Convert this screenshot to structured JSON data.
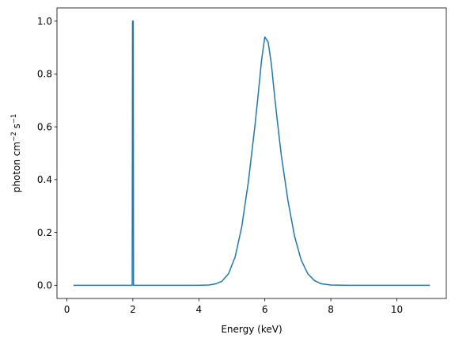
{
  "chart_data": {
    "type": "line",
    "title": "",
    "xlabel": "Energy (keV)",
    "ylabel_parts": {
      "a": "photon cm",
      "a_sup": "−2",
      "b": " s",
      "b_sup": "−1"
    },
    "xlim": [
      -0.3,
      11.5
    ],
    "ylim": [
      -0.05,
      1.05
    ],
    "xticks": [
      0,
      2,
      4,
      6,
      8,
      10
    ],
    "xtick_labels": [
      "0",
      "2",
      "4",
      "6",
      "8",
      "10"
    ],
    "yticks": [
      0.0,
      0.2,
      0.4,
      0.6,
      0.8,
      1.0
    ],
    "ytick_labels": [
      "0.0",
      "0.2",
      "0.4",
      "0.6",
      "0.8",
      "1.0"
    ],
    "grid": false,
    "legend": "none",
    "series": [
      {
        "color": "#1f77b4",
        "points": [
          [
            0.2,
            0.0
          ],
          [
            1.98,
            0.0
          ],
          [
            1.99,
            1.0
          ],
          [
            2.01,
            1.0
          ],
          [
            2.02,
            0.0
          ],
          [
            4.0,
            0.0
          ],
          [
            4.3,
            0.001
          ],
          [
            4.5,
            0.005
          ],
          [
            4.7,
            0.015
          ],
          [
            4.9,
            0.044
          ],
          [
            5.1,
            0.107
          ],
          [
            5.3,
            0.221
          ],
          [
            5.5,
            0.391
          ],
          [
            5.6,
            0.497
          ],
          [
            5.7,
            0.604
          ],
          [
            5.8,
            0.724
          ],
          [
            5.9,
            0.851
          ],
          [
            6.0,
            0.94
          ],
          [
            6.1,
            0.921
          ],
          [
            6.2,
            0.835
          ],
          [
            6.3,
            0.711
          ],
          [
            6.4,
            0.599
          ],
          [
            6.5,
            0.491
          ],
          [
            6.7,
            0.321
          ],
          [
            6.9,
            0.186
          ],
          [
            7.1,
            0.096
          ],
          [
            7.3,
            0.044
          ],
          [
            7.5,
            0.018
          ],
          [
            7.7,
            0.006
          ],
          [
            8.0,
            0.001
          ],
          [
            8.5,
            0.0
          ],
          [
            11.0,
            0.0
          ]
        ]
      }
    ]
  }
}
